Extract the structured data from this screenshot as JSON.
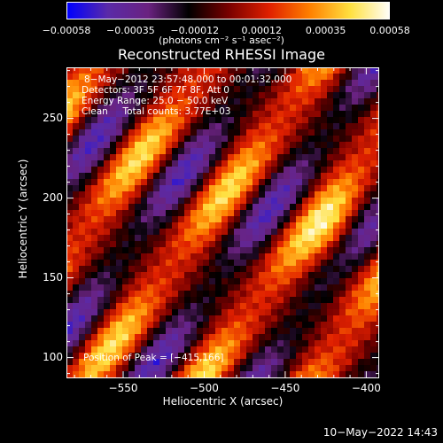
{
  "chart_data": {
    "type": "heatmap",
    "title": "Reconstructed RHESSI Image",
    "xlabel": "Heliocentric X (arcsec)",
    "ylabel": "Heliocentric Y (arcsec)",
    "xlim": [
      -585,
      -392
    ],
    "ylim": [
      87,
      282
    ],
    "xticks": [
      -550,
      -500,
      -450,
      -400
    ],
    "xtick_labels": [
      "−550",
      "−500",
      "−450",
      "−400"
    ],
    "yticks": [
      100,
      150,
      200,
      250
    ],
    "ytick_labels": [
      "100",
      "150",
      "200",
      "250"
    ],
    "colorbar": {
      "min": -0.00058,
      "max": 0.00058,
      "ticks": [
        -0.00058,
        -0.00035,
        -0.00012,
        0.00012,
        0.00035,
        0.00058
      ],
      "tick_labels": [
        "−0.00058",
        "−0.00035",
        "−0.00012",
        "0.00012",
        "0.00035",
        "0.00058"
      ],
      "units": "(photons cm⁻² s⁻¹ asec⁻²)",
      "colormap": [
        "#0000ff",
        "#5a2aa8",
        "#6a2280",
        "#000000",
        "#7a0000",
        "#e02000",
        "#ff8000",
        "#ffe040",
        "#ffffff"
      ]
    },
    "annotations": [
      "8−May−2012 23:57:48.000 to 00:01:32.000",
      "Detectors: 3F 5F 6F 7F 8F, Att 0",
      "Energy Range: 25.0 − 50.0 keV",
      "Clean     Total counts: 3.77E+03"
    ],
    "peak_label": "Position of Peak = [−415,166]",
    "peak_position": [
      -415,
      166
    ],
    "pattern": "diagonal stripes alternating positive (red/yellow) and negative (purple/blue)"
  },
  "footer": {
    "datestamp": "10−May−2022 14:43"
  }
}
